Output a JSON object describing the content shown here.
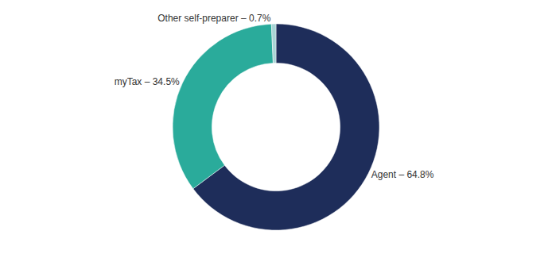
{
  "chart_data": {
    "type": "donut",
    "categories": [
      "Agent – 64.8%",
      "myTax – 34.5%",
      "Other self-preparer – 0.7%"
    ],
    "values": [
      64.8,
      34.5,
      0.7
    ],
    "colors": [
      "#1e2d5a",
      "#2aab9b",
      "#a8d4d5"
    ]
  }
}
